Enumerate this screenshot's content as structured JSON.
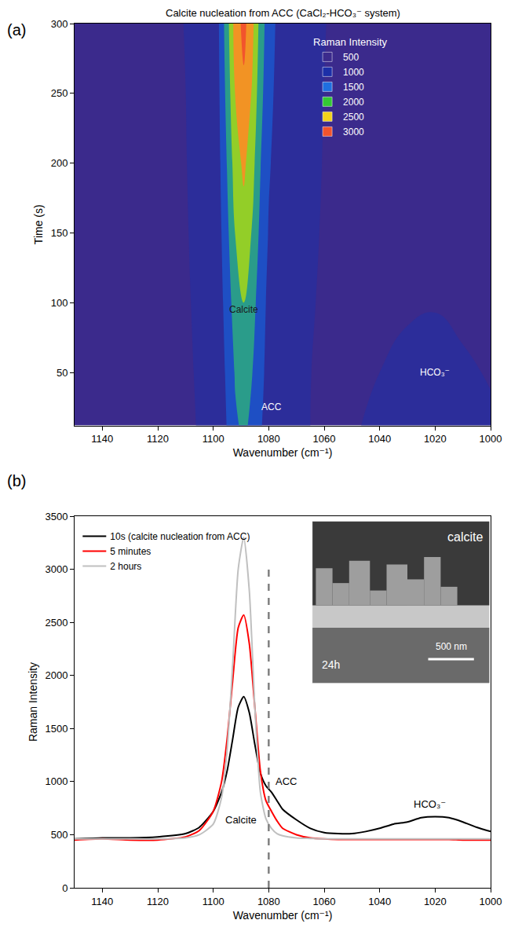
{
  "chart_data": [
    {
      "type": "contour",
      "label": "(a)",
      "title": "Calcite nucleation from ACC (CaCl₂-HCO₃⁻ system)",
      "x_label": "Wavenumber (cm⁻¹)",
      "y_label": "Time (s)",
      "x": [
        1000,
        1010,
        1020,
        1030,
        1040,
        1050,
        1060,
        1070,
        1075,
        1080,
        1083,
        1086,
        1089,
        1092,
        1095,
        1098,
        1102,
        1110,
        1120,
        1130,
        1140,
        1150
      ],
      "y": [
        12,
        50,
        100,
        150,
        200,
        250,
        300
      ],
      "z": [
        [
          520,
          560,
          620,
          600,
          540,
          480,
          480,
          520,
          590,
          890,
          1025,
          1393,
          1600,
          1428,
          1025,
          680,
          530,
          473,
          450,
          450,
          450,
          450
        ],
        [
          490,
          520,
          560,
          540,
          500,
          460,
          476,
          528,
          606,
          880,
          1100,
          1516,
          1750,
          1555,
          1100,
          710,
          541,
          476,
          450,
          450,
          450,
          450
        ],
        [
          460,
          470,
          490,
          480,
          460,
          450,
          481,
          543,
          636,
          884,
          1225,
          1721,
          2000,
          1768,
          1225,
          760,
          559,
          481,
          450,
          450,
          450,
          450
        ],
        [
          450,
          450,
          450,
          450,
          450,
          450,
          487,
          561,
          672,
          968,
          1375,
          1967,
          2300,
          2023,
          1375,
          820,
          580,
          487,
          450,
          450,
          450,
          450
        ],
        [
          450,
          450,
          450,
          450,
          450,
          450,
          493,
          579,
          708,
          1052,
          1525,
          2213,
          2600,
          2278,
          1525,
          880,
          601,
          493,
          450,
          450,
          450,
          450
        ],
        [
          450,
          450,
          450,
          450,
          450,
          450,
          499,
          597,
          744,
          1136,
          1675,
          2459,
          2900,
          2533,
          1675,
          940,
          622,
          499,
          450,
          450,
          450,
          450
        ],
        [
          450,
          450,
          450,
          450,
          450,
          450,
          504,
          612,
          774,
          1206,
          1800,
          2664,
          3150,
          2745,
          1800,
          990,
          639,
          504,
          450,
          450,
          450,
          450
        ]
      ],
      "xlim": [
        1150,
        1000
      ],
      "xticks": [
        1140,
        1120,
        1100,
        1080,
        1060,
        1040,
        1020,
        1000
      ],
      "ylim": [
        12,
        300
      ],
      "yticks": [
        50,
        100,
        150,
        200,
        250,
        300
      ],
      "colorbar": {
        "title": "Raman Intensity",
        "range": [
          500,
          3000
        ],
        "ticks": [
          500,
          1000,
          1500,
          2000,
          2500,
          3000
        ],
        "colors": [
          "#3b2a8c",
          "#1c2fa8",
          "#1f6fe0",
          "#34c934",
          "#f2d21b",
          "#f2542d"
        ]
      },
      "legend": "upper right",
      "grid": false,
      "annotations": [
        {
          "text": "Calcite",
          "x": 1089,
          "y": 95,
          "color": "#1a1a1a"
        },
        {
          "text": "ACC",
          "x": 1079,
          "y": 25,
          "color": "#ffffff"
        },
        {
          "text": "HCO₃⁻",
          "x": 1020,
          "y": 50,
          "color": "#ffffff"
        }
      ]
    },
    {
      "type": "line",
      "label": "(b)",
      "x_label": "Wavenumber (cm⁻¹)",
      "y_label": "Raman Intensity",
      "x": [
        1150,
        1140,
        1130,
        1120,
        1110,
        1105,
        1100,
        1097,
        1095,
        1093,
        1091,
        1089,
        1087,
        1085,
        1083,
        1081,
        1079,
        1077,
        1075,
        1070,
        1065,
        1060,
        1055,
        1050,
        1045,
        1040,
        1035,
        1030,
        1025,
        1020,
        1015,
        1010,
        1005,
        1000
      ],
      "series": [
        {
          "name": "10s (calcite nucleation from ACC)",
          "color": "#000000",
          "values": [
            460,
            470,
            470,
            480,
            510,
            570,
            720,
            900,
            1100,
            1400,
            1700,
            1800,
            1650,
            1350,
            1080,
            960,
            900,
            820,
            740,
            640,
            560,
            520,
            510,
            510,
            530,
            560,
            600,
            620,
            660,
            670,
            660,
            620,
            570,
            530
          ]
        },
        {
          "name": "5 minutes",
          "color": "#ff0000",
          "values": [
            450,
            460,
            450,
            450,
            480,
            540,
            720,
            1000,
            1400,
            1950,
            2450,
            2570,
            2300,
            1700,
            1100,
            820,
            720,
            630,
            560,
            500,
            470,
            460,
            455,
            455,
            455,
            455,
            455,
            455,
            455,
            455,
            455,
            450,
            450,
            450
          ]
        },
        {
          "name": "2 hours",
          "color": "#c0c0c0",
          "values": [
            460,
            460,
            460,
            460,
            470,
            500,
            600,
            850,
            1300,
            2100,
            3000,
            3300,
            2800,
            1700,
            900,
            650,
            560,
            510,
            490,
            470,
            465,
            460,
            460,
            460,
            460,
            460,
            460,
            460,
            460,
            460,
            460,
            460,
            460,
            460
          ]
        }
      ],
      "xlim": [
        1150,
        1000
      ],
      "xticks": [
        1140,
        1120,
        1100,
        1080,
        1060,
        1040,
        1020,
        1000
      ],
      "ylim": [
        0,
        3500
      ],
      "yticks": [
        0,
        500,
        1000,
        1500,
        2000,
        2500,
        3000,
        3500
      ],
      "legend": "upper left",
      "grid": false,
      "annotations": [
        {
          "text": "Calcite",
          "x": 1090,
          "y": 640,
          "color": "#000000"
        },
        {
          "text": "ACC",
          "x": 1079,
          "y": 1000,
          "color": "#000000"
        },
        {
          "text": "HCO₃⁻",
          "x": 1022,
          "y": 790,
          "color": "#000000"
        }
      ],
      "reference_line": {
        "x": 1080,
        "y": [
          0,
          3000
        ],
        "color": "#808080",
        "line_style": "dash"
      },
      "inset": {
        "label": "calcite",
        "time": "24h",
        "scale_bar": "500 nm"
      }
    }
  ]
}
